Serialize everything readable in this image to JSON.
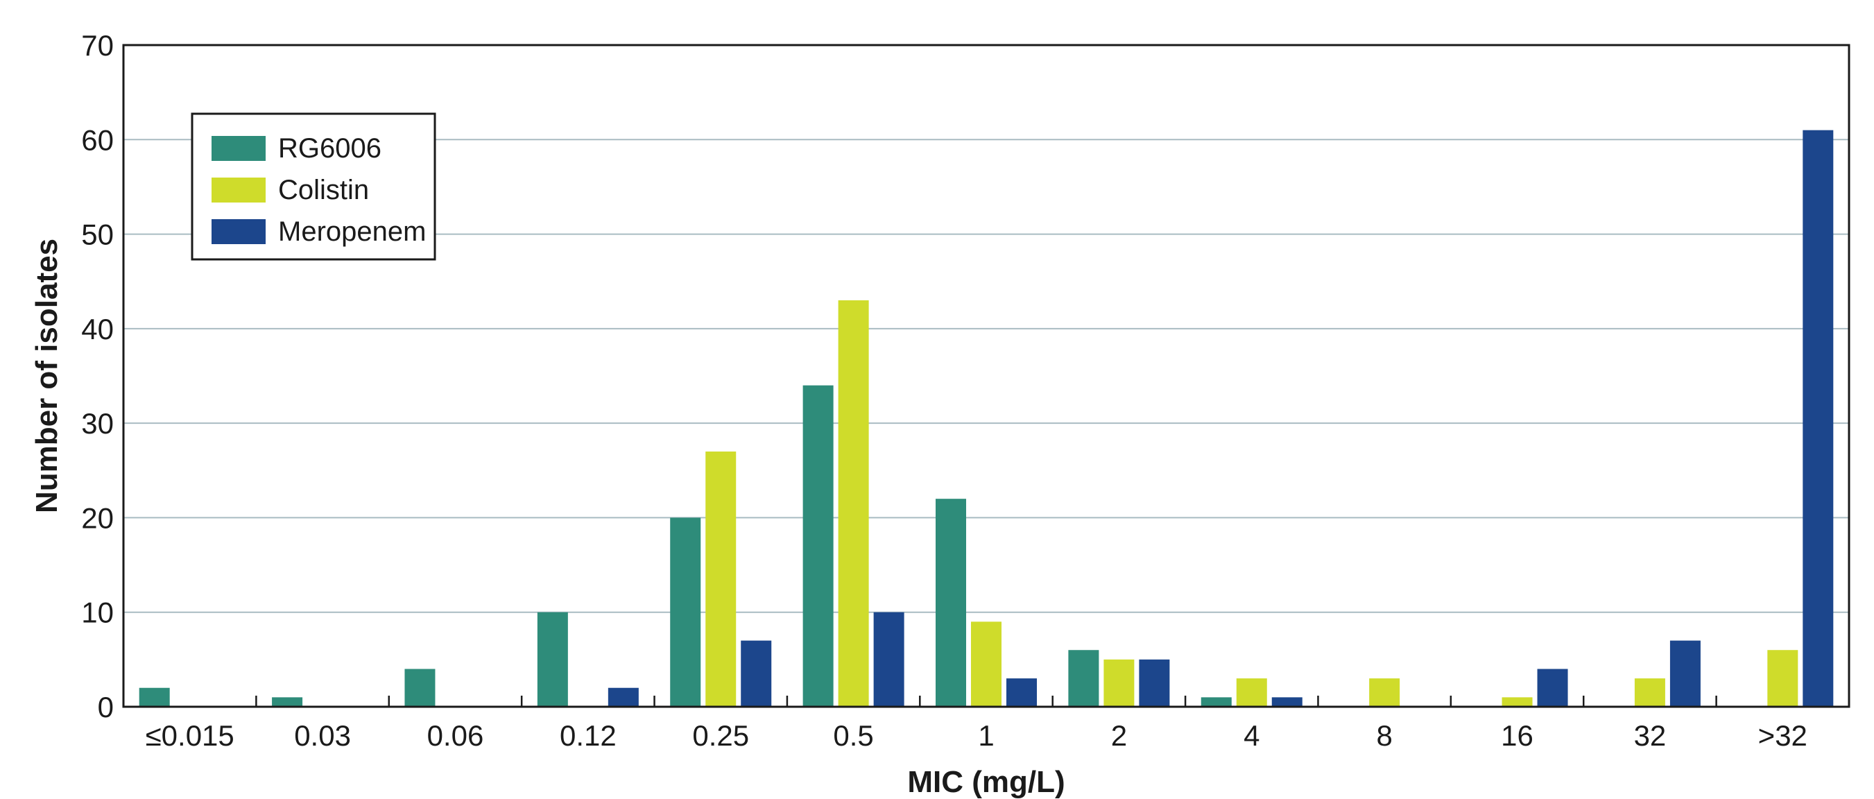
{
  "chart_data": {
    "type": "bar",
    "title": "",
    "xlabel": "MIC (mg/L)",
    "ylabel": "Number of isolates",
    "ylim": [
      0,
      70
    ],
    "yticks": [
      0,
      10,
      20,
      30,
      40,
      50,
      60,
      70
    ],
    "grid": "horizontal",
    "legend_position": "top-left",
    "categories": [
      "≤0.015",
      "0.03",
      "0.06",
      "0.12",
      "0.25",
      "0.5",
      "1",
      "2",
      "4",
      "8",
      "16",
      "32",
      ">32"
    ],
    "series": [
      {
        "name": "RG6006",
        "color": "#2e8c7a",
        "values": [
          2,
          1,
          4,
          10,
          20,
          34,
          22,
          6,
          1,
          0,
          0,
          0,
          0
        ]
      },
      {
        "name": "Colistin",
        "color": "#cfdc2b",
        "values": [
          0,
          0,
          0,
          0,
          27,
          43,
          9,
          5,
          3,
          3,
          1,
          3,
          6
        ]
      },
      {
        "name": "Meropenem",
        "color": "#1c468c",
        "values": [
          0,
          0,
          0,
          2,
          7,
          10,
          3,
          5,
          1,
          0,
          4,
          7,
          61
        ]
      }
    ]
  }
}
